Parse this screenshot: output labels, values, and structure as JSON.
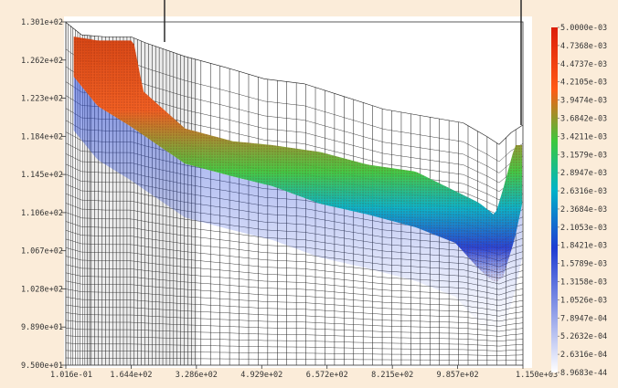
{
  "chart_data": {
    "type": "heatmap",
    "y_ticks": [
      "1.301e+02",
      "1.262e+02",
      "1.223e+02",
      "1.184e+02",
      "1.145e+02",
      "1.106e+02",
      "1.067e+02",
      "1.028e+02",
      "9.890e+01",
      "9.500e+01"
    ],
    "x_ticks": [
      "1.016e-01",
      "1.644e+02",
      "3.286e+02",
      "4.929e+02",
      "6.572e+02",
      "8.215e+02",
      "9.857e+02",
      "1.150e+03"
    ],
    "xlim": [
      0.1016,
      1150
    ],
    "ylim": [
      95.0,
      130.1
    ],
    "legend_labels": [
      "5.0000e-03",
      "4.7368e-03",
      "4.4737e-03",
      "4.2105e-03",
      "3.9474e-03",
      "3.6842e-03",
      "3.4211e-03",
      "3.1579e-03",
      "2.8947e-03",
      "2.6316e-03",
      "2.3684e-03",
      "2.1053e-03",
      "1.8421e-03",
      "1.5789e-03",
      "1.3158e-03",
      "1.0526e-03",
      "7.8947e-04",
      "5.2632e-04",
      "2.6316e-04",
      "8.9683e-44"
    ],
    "color_range": [
      8.9683e-44,
      0.005
    ],
    "colormap": [
      "#ffffff",
      "#1e3cd2",
      "#00b4c8",
      "#3cc83c",
      "#ff5a14",
      "#dc1e0a"
    ],
    "ground_surface": [
      [
        0,
        130.1
      ],
      [
        40,
        128.8
      ],
      [
        100,
        128.6
      ],
      [
        165,
        128.6
      ],
      [
        200,
        128.0
      ],
      [
        300,
        126.6
      ],
      [
        400,
        125.5
      ],
      [
        500,
        124.3
      ],
      [
        600,
        123.8
      ],
      [
        700,
        122.5
      ],
      [
        800,
        121.2
      ],
      [
        900,
        120.5
      ],
      [
        1000,
        119.8
      ],
      [
        1060,
        118.4
      ],
      [
        1090,
        117.6
      ],
      [
        1120,
        118.8
      ],
      [
        1150,
        119.6
      ]
    ],
    "plume_top": [
      [
        20,
        128.6
      ],
      [
        80,
        128.2
      ],
      [
        170,
        128.2
      ],
      [
        195,
        123.0
      ],
      [
        300,
        119.2
      ],
      [
        420,
        117.9
      ],
      [
        520,
        117.5
      ],
      [
        640,
        116.8
      ],
      [
        760,
        115.5
      ],
      [
        880,
        114.8
      ],
      [
        980,
        112.8
      ],
      [
        1040,
        111.6
      ],
      [
        1080,
        110.3
      ],
      [
        1100,
        113.0
      ],
      [
        1130,
        117.5
      ]
    ],
    "plume_bottom": [
      [
        20,
        124.5
      ],
      [
        80,
        121.5
      ],
      [
        160,
        119.5
      ],
      [
        300,
        115.6
      ],
      [
        420,
        114.3
      ],
      [
        520,
        113.3
      ],
      [
        640,
        111.5
      ],
      [
        760,
        110.4
      ],
      [
        880,
        109.1
      ],
      [
        980,
        107.5
      ],
      [
        1040,
        104.8
      ],
      [
        1080,
        103.4
      ],
      [
        1100,
        104.0
      ],
      [
        1130,
        108.0
      ],
      [
        1148,
        111.5
      ]
    ]
  }
}
